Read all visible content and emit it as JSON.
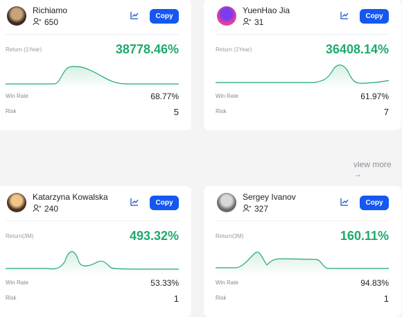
{
  "cards": [
    {
      "name": "Richiamo",
      "followers": 650,
      "button": "Copy",
      "return_label": "Return (1Year)",
      "return_value": "38778.46%",
      "win_rate_label": "Win Rate",
      "win_rate": "68.77%",
      "risk_label": "Risk",
      "risk": 5
    },
    {
      "name": "YuenHao Jia",
      "followers": 31,
      "button": "Copy",
      "return_label": "Return (1Year)",
      "return_value": "36408.14%",
      "win_rate_label": "Win Rate",
      "win_rate": "61.97%",
      "risk_label": "Risk",
      "risk": 7
    },
    {
      "name": "Katarzyna Kowalska",
      "followers": 240,
      "button": "Copy",
      "return_label": "Return(3M)",
      "return_value": "493.32%",
      "win_rate_label": "Win Rate",
      "win_rate": "53.33%",
      "risk_label": "Risk",
      "risk": 1
    },
    {
      "name": "Sergey Ivanov",
      "followers": 327,
      "button": "Copy",
      "return_label": "Return(3M)",
      "return_value": "160.11%",
      "win_rate_label": "Win Rate",
      "win_rate": "94.83%",
      "risk_label": "Risk",
      "risk": 1
    }
  ],
  "view_more": "view more"
}
